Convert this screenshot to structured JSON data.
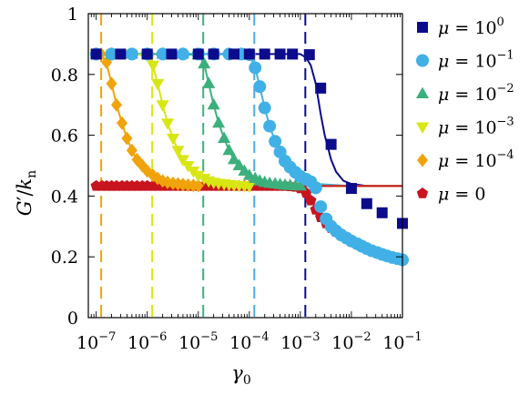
{
  "chart_data": {
    "type": "scatter",
    "ylabel_parts": {
      "base": "G",
      "prime": "′",
      "slash": "/",
      "k": "k",
      "sub": "n"
    },
    "xlabel_parts": {
      "base": "γ",
      "sub": "0"
    },
    "x_scale": "log",
    "xlim": [
      7e-08,
      0.1
    ],
    "ylim": [
      0,
      1
    ],
    "x_ticks": [
      {
        "base": "10",
        "exp": "−7",
        "value": 1e-07
      },
      {
        "base": "10",
        "exp": "−6",
        "value": 1e-06
      },
      {
        "base": "10",
        "exp": "−5",
        "value": 1e-05
      },
      {
        "base": "10",
        "exp": "−4",
        "value": 0.0001
      },
      {
        "base": "10",
        "exp": "−3",
        "value": 0.001
      },
      {
        "base": "10",
        "exp": "−2",
        "value": 0.01
      },
      {
        "base": "10",
        "exp": "−1",
        "value": 0.1
      }
    ],
    "y_ticks": [
      {
        "label": "0",
        "value": 0
      },
      {
        "label": "0.2",
        "value": 0.2
      },
      {
        "label": "0.4",
        "value": 0.4
      },
      {
        "label": "0.6",
        "value": 0.6
      },
      {
        "label": "0.8",
        "value": 0.8
      },
      {
        "label": "1",
        "value": 1
      }
    ],
    "grid": false,
    "legend_position": "outside-right",
    "series": [
      {
        "name": "μ = 10^0",
        "legend_text": "μ = 10",
        "legend_exp": "0",
        "color": "#0b0b8c",
        "marker": "square",
        "x": [
          1e-07,
          3e-07,
          1e-06,
          3e-06,
          1e-05,
          2e-05,
          5e-05,
          0.0001,
          0.0002,
          0.0004,
          0.0007,
          0.0015,
          0.0025,
          0.004,
          0.01,
          0.02,
          0.04,
          0.1
        ],
        "y": [
          0.867,
          0.867,
          0.867,
          0.867,
          0.867,
          0.867,
          0.867,
          0.867,
          0.867,
          0.867,
          0.867,
          0.865,
          0.755,
          0.57,
          0.425,
          0.375,
          0.345,
          0.31
        ],
        "fit_x": [
          1e-07,
          1e-06,
          1e-05,
          0.0001,
          0.001,
          0.0013,
          0.0016,
          0.002,
          0.0025,
          0.003,
          0.004,
          0.005,
          0.007,
          0.01,
          0.02,
          0.1
        ],
        "fit_y": [
          0.867,
          0.867,
          0.867,
          0.867,
          0.867,
          0.855,
          0.83,
          0.77,
          0.67,
          0.6,
          0.52,
          0.48,
          0.45,
          0.44,
          0.433,
          0.433
        ],
        "critical_x": 0.00125
      },
      {
        "name": "μ = 10^-1",
        "legend_text": "μ = 10",
        "legend_exp": "−1",
        "color": "#41b0e6",
        "marker": "circle",
        "x": [
          1e-07,
          2e-07,
          5e-07,
          1e-06,
          2e-06,
          5e-06,
          1e-05,
          2e-05,
          4e-05,
          7e-05,
          0.0001,
          0.00013,
          0.00016,
          0.0002,
          0.00025,
          0.00032,
          0.0004,
          0.0005,
          0.00063,
          0.0008,
          0.001,
          0.0013,
          0.0016,
          0.002,
          0.0025,
          0.0032,
          0.004,
          0.005,
          0.0063,
          0.008,
          0.01,
          0.013,
          0.016,
          0.02,
          0.025,
          0.032,
          0.04,
          0.05,
          0.063,
          0.08,
          0.1
        ],
        "y": [
          0.867,
          0.867,
          0.867,
          0.867,
          0.867,
          0.867,
          0.867,
          0.867,
          0.867,
          0.867,
          0.865,
          0.822,
          0.76,
          0.69,
          0.63,
          0.58,
          0.545,
          0.515,
          0.495,
          0.478,
          0.465,
          0.455,
          0.447,
          0.427,
          0.365,
          0.325,
          0.3,
          0.285,
          0.272,
          0.262,
          0.252,
          0.243,
          0.235,
          0.227,
          0.22,
          0.214,
          0.208,
          0.203,
          0.198,
          0.194,
          0.19
        ],
        "fit_x": [
          1e-07,
          1e-05,
          0.0001,
          0.00013,
          0.00016,
          0.0002,
          0.00025,
          0.00032,
          0.0004,
          0.0005,
          0.0007,
          0.001,
          0.002,
          0.01,
          0.1
        ],
        "fit_y": [
          0.867,
          0.867,
          0.865,
          0.822,
          0.76,
          0.69,
          0.63,
          0.58,
          0.545,
          0.515,
          0.48,
          0.46,
          0.44,
          0.433,
          0.433
        ],
        "critical_x": 0.000125
      },
      {
        "name": "μ = 10^-2",
        "legend_text": "μ = 10",
        "legend_exp": "−2",
        "color": "#3cb07c",
        "marker": "triangle-up",
        "x": [
          1e-07,
          2e-07,
          5e-07,
          1e-06,
          2e-06,
          5e-06,
          1e-05,
          1.3e-05,
          1.6e-05,
          2e-05,
          2.5e-05,
          3.2e-05,
          4e-05,
          5e-05,
          6.3e-05,
          8e-05,
          0.0001,
          0.00013,
          0.00016,
          0.0002,
          0.00025,
          0.00032,
          0.0004,
          0.0005,
          0.00063,
          0.0008,
          0.001
        ],
        "y": [
          0.867,
          0.867,
          0.867,
          0.867,
          0.867,
          0.867,
          0.865,
          0.835,
          0.77,
          0.7,
          0.64,
          0.59,
          0.55,
          0.52,
          0.5,
          0.482,
          0.468,
          0.458,
          0.45,
          0.445,
          0.442,
          0.44,
          0.438,
          0.436,
          0.435,
          0.434,
          0.433
        ],
        "fit_x": [
          1e-07,
          1e-06,
          1e-05,
          1.3e-05,
          1.6e-05,
          2e-05,
          2.5e-05,
          3.2e-05,
          4e-05,
          5e-05,
          7e-05,
          0.0001,
          0.0002,
          0.001,
          0.1
        ],
        "fit_y": [
          0.867,
          0.867,
          0.865,
          0.835,
          0.77,
          0.7,
          0.64,
          0.59,
          0.55,
          0.52,
          0.488,
          0.468,
          0.445,
          0.433,
          0.433
        ],
        "critical_x": 1.25e-05
      },
      {
        "name": "μ = 10^-3",
        "legend_text": "μ = 10",
        "legend_exp": "−3",
        "color": "#d8e614",
        "marker": "triangle-down",
        "x": [
          1e-07,
          2e-07,
          5e-07,
          1e-06,
          1.3e-06,
          1.6e-06,
          2e-06,
          2.5e-06,
          3.2e-06,
          4e-06,
          5e-06,
          6.3e-06,
          8e-06,
          1e-05,
          1.3e-05,
          1.6e-05,
          2e-05,
          2.5e-05,
          3.2e-05,
          4e-05,
          5e-05,
          6.3e-05,
          8e-05,
          0.0001
        ],
        "y": [
          0.867,
          0.867,
          0.867,
          0.865,
          0.83,
          0.77,
          0.7,
          0.64,
          0.59,
          0.55,
          0.52,
          0.5,
          0.482,
          0.468,
          0.458,
          0.45,
          0.445,
          0.442,
          0.44,
          0.438,
          0.436,
          0.435,
          0.434,
          0.433
        ],
        "fit_x": [
          1e-07,
          1e-06,
          1.3e-06,
          1.6e-06,
          2e-06,
          2.5e-06,
          3.2e-06,
          4e-06,
          5e-06,
          7e-06,
          1e-05,
          2e-05,
          0.0001,
          0.1
        ],
        "fit_y": [
          0.867,
          0.865,
          0.83,
          0.77,
          0.7,
          0.64,
          0.59,
          0.55,
          0.52,
          0.488,
          0.468,
          0.445,
          0.433,
          0.433
        ],
        "critical_x": 1.25e-06
      },
      {
        "name": "μ = 10^-4",
        "legend_text": "μ = 10",
        "legend_exp": "−4",
        "color": "#f0a30a",
        "marker": "diamond",
        "x": [
          1e-07,
          1.25e-07,
          1.6e-07,
          2e-07,
          2.5e-07,
          3.2e-07,
          4e-07,
          5e-07,
          6.3e-07,
          8e-07,
          1e-06,
          1.3e-06,
          1.6e-06,
          2e-06,
          2.5e-06,
          3.2e-06,
          4e-06,
          5e-06,
          6.3e-06,
          8e-06,
          1e-05
        ],
        "y": [
          0.867,
          0.867,
          0.84,
          0.77,
          0.7,
          0.64,
          0.59,
          0.55,
          0.52,
          0.5,
          0.482,
          0.468,
          0.458,
          0.45,
          0.445,
          0.442,
          0.44,
          0.438,
          0.436,
          0.435,
          0.434
        ],
        "fit_x": [
          1e-07,
          1.25e-07,
          1.6e-07,
          2e-07,
          2.5e-07,
          3.2e-07,
          4e-07,
          5e-07,
          7e-07,
          1e-06,
          2e-06,
          1e-05,
          0.1
        ],
        "fit_y": [
          0.867,
          0.867,
          0.835,
          0.77,
          0.7,
          0.64,
          0.59,
          0.55,
          0.505,
          0.48,
          0.45,
          0.434,
          0.433
        ],
        "critical_x": 1.25e-07
      },
      {
        "name": "μ = 0",
        "legend_text": "μ = 0",
        "legend_exp": "",
        "color": "#c8141e",
        "marker": "pentagon",
        "x": [
          1e-07,
          1.3e-07,
          1.6e-07,
          2e-07,
          2.5e-07,
          3.2e-07,
          4e-07,
          5e-07,
          6.3e-07,
          8e-07,
          1e-06,
          1.3e-06,
          1.6e-06,
          2e-06,
          2.5e-06,
          3.2e-06,
          4e-06,
          5e-06,
          6.3e-06,
          8e-06,
          1e-05,
          1.3e-05,
          1.6e-05,
          2e-05,
          2.5e-05,
          3.2e-05,
          4e-05,
          5e-05,
          6.3e-05,
          8e-05,
          0.0001,
          0.00013,
          0.00016,
          0.0002,
          0.00025,
          0.00032,
          0.0004,
          0.0005,
          0.00063,
          0.0008,
          0.001,
          0.0013,
          0.0016,
          0.002,
          0.0025,
          0.0032,
          0.004,
          0.005,
          0.0063,
          0.008,
          0.01,
          0.013,
          0.016,
          0.02,
          0.025,
          0.032,
          0.04,
          0.05,
          0.063,
          0.08,
          0.1
        ],
        "y": [
          0.433,
          0.433,
          0.433,
          0.433,
          0.433,
          0.433,
          0.433,
          0.433,
          0.433,
          0.433,
          0.433,
          0.433,
          0.433,
          0.433,
          0.433,
          0.433,
          0.433,
          0.433,
          0.433,
          0.433,
          0.433,
          0.433,
          0.433,
          0.433,
          0.433,
          0.433,
          0.433,
          0.433,
          0.433,
          0.433,
          0.433,
          0.433,
          0.433,
          0.433,
          0.433,
          0.433,
          0.433,
          0.433,
          0.432,
          0.43,
          0.425,
          0.41,
          0.385,
          0.355,
          0.33,
          0.31,
          0.295,
          0.282,
          0.27,
          0.26,
          0.25,
          0.241,
          0.233,
          0.226,
          0.219,
          0.213,
          0.207,
          0.202,
          0.197,
          0.193,
          0.189
        ],
        "fit_x": [
          1e-07,
          0.1
        ],
        "fit_y": [
          0.433,
          0.433
        ],
        "critical_x": null
      }
    ]
  }
}
